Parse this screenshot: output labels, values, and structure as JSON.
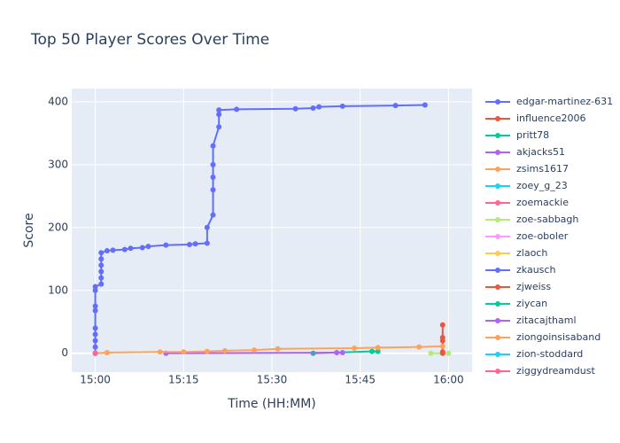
{
  "chart_data": {
    "type": "line",
    "title": "Top 50 Player Scores Over Time",
    "x_label": "Time (HH:MM)",
    "y_label": "Score",
    "xlim": [
      "14:56",
      "16:04"
    ],
    "ylim": [
      -30,
      421
    ],
    "xticks": [
      "15:00",
      "15:15",
      "15:30",
      "15:45",
      "16:00"
    ],
    "yticks": [
      0,
      100,
      200,
      300,
      400
    ],
    "grid": true,
    "legend": "right",
    "series": [
      {
        "name": "edgar-martinez-631",
        "color": "#636efa",
        "x": [
          "15:00",
          "15:00",
          "15:00",
          "15:00",
          "15:00",
          "15:00",
          "15:00",
          "15:00",
          "15:00",
          "15:01",
          "15:01",
          "15:01",
          "15:01",
          "15:01",
          "15:01",
          "15:02",
          "15:03",
          "15:05",
          "15:06",
          "15:08",
          "15:09",
          "15:12",
          "15:16",
          "15:17",
          "15:19",
          "15:19",
          "15:20",
          "15:20",
          "15:20",
          "15:20",
          "15:20",
          "15:21",
          "15:21",
          "15:21",
          "15:24",
          "15:34",
          "15:37",
          "15:38",
          "15:42",
          "15:51",
          "15:56"
        ],
        "values": [
          0,
          10,
          20,
          30,
          40,
          68,
          75,
          100,
          106,
          110,
          120,
          130,
          140,
          150,
          160,
          163,
          164,
          165,
          167,
          168,
          170,
          172,
          173,
          174,
          175,
          200,
          220,
          260,
          280,
          300,
          330,
          360,
          380,
          387,
          388,
          389,
          390,
          392,
          393,
          394,
          395
        ]
      },
      {
        "name": "influence2006",
        "color": "#EF553B",
        "x": [
          "15:59",
          "15:59",
          "15:59",
          "15:59"
        ],
        "values": [
          45,
          25,
          20,
          2
        ]
      },
      {
        "name": "pritt78",
        "color": "#00cc96",
        "x": [
          "15:37",
          "15:47",
          "15:48"
        ],
        "values": [
          0,
          3,
          3
        ]
      },
      {
        "name": "akjacks51",
        "color": "#ab63fa",
        "x": [
          "15:12",
          "15:41",
          "15:42"
        ],
        "values": [
          0,
          1,
          1
        ]
      },
      {
        "name": "zsims1617",
        "color": "#FFA15A",
        "x": [
          "15:00",
          "15:02",
          "15:11",
          "15:15",
          "15:19",
          "15:22",
          "15:27",
          "15:31",
          "15:44",
          "15:48",
          "15:55",
          "15:59"
        ],
        "values": [
          0,
          1,
          2,
          2,
          3,
          4,
          5,
          7,
          8,
          9,
          10,
          11
        ]
      },
      {
        "name": "zoey_g_23",
        "color": "#19d3f3",
        "x": [
          "15:00"
        ],
        "values": [
          0
        ]
      },
      {
        "name": "zoemackie",
        "color": "#FF6692",
        "x": [
          "15:00"
        ],
        "values": [
          0
        ]
      },
      {
        "name": "zoe-sabbagh",
        "color": "#B6E880",
        "x": [
          "15:57",
          "16:00"
        ],
        "values": [
          0,
          0
        ]
      },
      {
        "name": "zoe-oboler",
        "color": "#FF97FF",
        "x": [
          "15:00"
        ],
        "values": [
          0
        ]
      },
      {
        "name": "zlaoch",
        "color": "#FECB52",
        "x": [
          "15:00"
        ],
        "values": [
          0
        ]
      },
      {
        "name": "zkausch",
        "color": "#636efa",
        "x": [
          "15:00"
        ],
        "values": [
          0
        ]
      },
      {
        "name": "zjweiss",
        "color": "#EF553B",
        "x": [
          "15:59"
        ],
        "values": [
          0
        ]
      },
      {
        "name": "ziycan",
        "color": "#00cc96",
        "x": [
          "15:00"
        ],
        "values": [
          0
        ]
      },
      {
        "name": "zitacajthaml",
        "color": "#ab63fa",
        "x": [
          "15:00"
        ],
        "values": [
          0
        ]
      },
      {
        "name": "ziongoinsisaband",
        "color": "#FFA15A",
        "x": [
          "15:00"
        ],
        "values": [
          0
        ]
      },
      {
        "name": "zion-stoddard",
        "color": "#19d3f3",
        "x": [
          "15:00"
        ],
        "values": [
          0
        ]
      },
      {
        "name": "ziggydreamdust",
        "color": "#FF6692",
        "x": [
          "15:00"
        ],
        "values": [
          0
        ]
      }
    ]
  }
}
